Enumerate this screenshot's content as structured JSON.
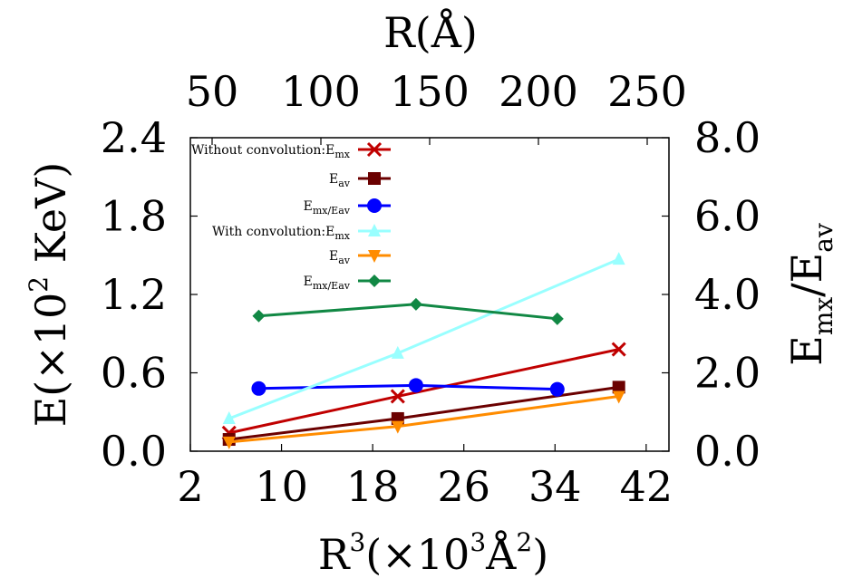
{
  "chart_data": {
    "type": "line",
    "x_bottom": {
      "label": "R",
      "label_suffix": "(×10",
      "label_sup1": "3",
      "label_mid": "Å",
      "label_sup2": "2",
      "label_end": ")",
      "ticks": [
        "2",
        "10",
        "18",
        "26",
        "34",
        "42"
      ],
      "range": [
        2,
        44
      ]
    },
    "x_top": {
      "label": "R(Å)",
      "ticks": [
        "50",
        "100",
        "150",
        "200",
        "250"
      ],
      "range": [
        50,
        250
      ]
    },
    "y_left": {
      "label_main": "E(×10",
      "label_sup": "2",
      "label_end": " KeV)",
      "ticks": [
        "0.0",
        "0.6",
        "1.2",
        "1.8",
        "2.4"
      ],
      "range": [
        0,
        2.4
      ]
    },
    "y_right": {
      "label_main": "E",
      "label_sub1": "mx",
      "label_mid": "/E",
      "label_sub2": "av",
      "ticks": [
        "0.0",
        "2.0",
        "4.0",
        "6.0",
        "8.0"
      ],
      "range": [
        0,
        8
      ]
    },
    "series": [
      {
        "name": "Without convolution:E",
        "name_sub": "mx",
        "axis": "left",
        "color": "#c00000",
        "marker": "x",
        "x": [
          5.4,
          20.2,
          39.6
        ],
        "y": [
          0.14,
          0.42,
          0.78
        ]
      },
      {
        "name": "E",
        "name_sub": "av",
        "axis": "left",
        "color": "#6b0000",
        "marker": "square",
        "x": [
          5.4,
          20.2,
          39.6
        ],
        "y": [
          0.09,
          0.25,
          0.49
        ]
      },
      {
        "name": "E",
        "name_sub": "mx/E",
        "name_sub2": "av",
        "axis": "right",
        "color": "#0000ff",
        "marker": "circle",
        "x": [
          8.0,
          21.8,
          34.2
        ],
        "y": [
          1.6,
          1.68,
          1.58
        ]
      },
      {
        "name": "With convolution:E",
        "name_sub": "mx",
        "axis": "left",
        "color": "#99ffff",
        "marker": "triangle-up",
        "x": [
          5.4,
          20.2,
          39.6
        ],
        "y": [
          0.25,
          0.75,
          1.47
        ]
      },
      {
        "name": "E",
        "name_sub": "av",
        "axis": "left",
        "color": "#ff8c00",
        "marker": "triangle-down",
        "x": [
          5.4,
          20.2,
          39.6
        ],
        "y": [
          0.07,
          0.19,
          0.42
        ]
      },
      {
        "name": "E",
        "name_sub": "mx/E",
        "name_sub2": "av",
        "axis": "right",
        "color": "#118844",
        "marker": "diamond",
        "x": [
          8.0,
          21.8,
          34.2
        ],
        "y": [
          3.45,
          3.75,
          3.38
        ]
      }
    ],
    "grid": false,
    "legend_position": "top-left"
  }
}
